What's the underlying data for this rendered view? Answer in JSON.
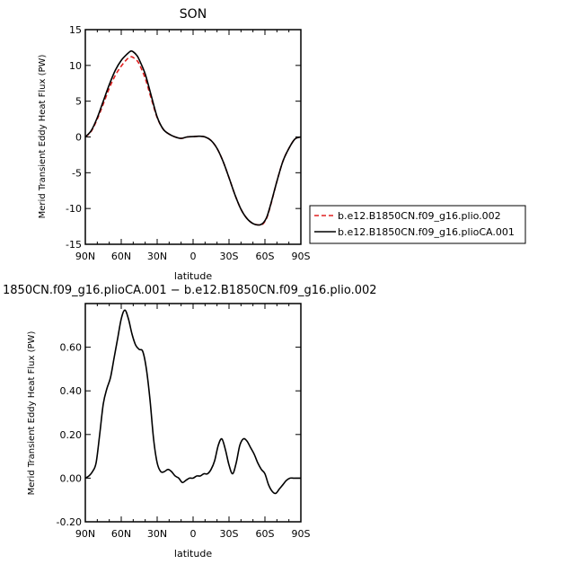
{
  "chart_data": [
    {
      "type": "line",
      "title": "SON",
      "xlabel": "latitude",
      "ylabel": "Merid Transient Eddy Heat Flux (PW)",
      "x_range": [
        90,
        -90
      ],
      "ylim": [
        -15,
        15
      ],
      "x_ticks": [
        {
          "value": 90,
          "label": "90N"
        },
        {
          "value": 60,
          "label": "60N"
        },
        {
          "value": 30,
          "label": "30N"
        },
        {
          "value": 0,
          "label": "0"
        },
        {
          "value": -30,
          "label": "30S"
        },
        {
          "value": -60,
          "label": "60S"
        },
        {
          "value": -90,
          "label": "90S"
        }
      ],
      "y_ticks": [
        {
          "value": 15,
          "label": "15"
        },
        {
          "value": 10,
          "label": "10"
        },
        {
          "value": 5,
          "label": "5"
        },
        {
          "value": 0,
          "label": "0"
        },
        {
          "value": -5,
          "label": "-5"
        },
        {
          "value": -10,
          "label": "-10"
        },
        {
          "value": -15,
          "label": "-15"
        }
      ],
      "grid": false,
      "legend_position": "right",
      "series": [
        {
          "name": "b.e12.B1850CN.f09_g16.plio.002",
          "color": "#e02020",
          "dash": "dashed",
          "x": [
            90,
            85,
            80,
            75,
            70,
            65,
            60,
            55,
            52,
            50,
            47,
            45,
            40,
            35,
            30,
            25,
            20,
            15,
            10,
            5,
            0,
            -5,
            -10,
            -15,
            -20,
            -25,
            -30,
            -35,
            -40,
            -45,
            -50,
            -55,
            -58,
            -60,
            -62,
            -65,
            -70,
            -75,
            -80,
            -85,
            -90
          ],
          "y": [
            0.0,
            0.8,
            2.5,
            4.6,
            6.8,
            8.6,
            9.9,
            10.9,
            11.2,
            11.1,
            10.7,
            10.2,
            8.2,
            5.4,
            2.7,
            1.1,
            0.4,
            0.0,
            -0.2,
            0.0,
            0.05,
            0.1,
            0.0,
            -0.5,
            -1.6,
            -3.4,
            -5.7,
            -8.1,
            -10.1,
            -11.4,
            -12.1,
            -12.3,
            -12.2,
            -11.8,
            -11.1,
            -9.4,
            -6.2,
            -3.4,
            -1.6,
            -0.3,
            0.0
          ]
        },
        {
          "name": "b.e12.B1850CN.f09_g16.plioCA.001",
          "color": "#000000",
          "dash": "solid",
          "x": [
            90,
            85,
            80,
            75,
            70,
            65,
            60,
            55,
            52,
            50,
            47,
            45,
            40,
            35,
            30,
            25,
            20,
            15,
            10,
            5,
            0,
            -5,
            -10,
            -15,
            -20,
            -25,
            -30,
            -35,
            -40,
            -45,
            -50,
            -55,
            -58,
            -60,
            -62,
            -65,
            -70,
            -75,
            -80,
            -85,
            -90
          ],
          "y": [
            0.0,
            0.9,
            2.7,
            5.0,
            7.3,
            9.3,
            10.7,
            11.6,
            12.0,
            11.9,
            11.4,
            10.8,
            8.8,
            5.8,
            2.8,
            1.1,
            0.4,
            0.0,
            -0.2,
            0.0,
            0.05,
            0.1,
            0.0,
            -0.5,
            -1.6,
            -3.4,
            -5.7,
            -8.1,
            -10.1,
            -11.4,
            -12.1,
            -12.3,
            -12.1,
            -11.7,
            -11.0,
            -9.3,
            -6.2,
            -3.4,
            -1.6,
            -0.3,
            0.0
          ]
        }
      ]
    },
    {
      "type": "line",
      "title": "1850CN.f09_g16.plioCA.001 − b.e12.B1850CN.f09_g16.plio.002",
      "xlabel": "latitude",
      "ylabel": "Merid Transient Eddy Heat Flux (PW)",
      "x_range": [
        90,
        -90
      ],
      "ylim": [
        -0.2,
        0.8
      ],
      "x_ticks": [
        {
          "value": 90,
          "label": "90N"
        },
        {
          "value": 60,
          "label": "60N"
        },
        {
          "value": 30,
          "label": "30N"
        },
        {
          "value": 0,
          "label": "0"
        },
        {
          "value": -30,
          "label": "30S"
        },
        {
          "value": -60,
          "label": "60S"
        },
        {
          "value": -90,
          "label": "90S"
        }
      ],
      "y_ticks": [
        {
          "value": 0.6,
          "label": "0.60"
        },
        {
          "value": 0.4,
          "label": "0.40"
        },
        {
          "value": 0.2,
          "label": "0.20"
        },
        {
          "value": 0.0,
          "label": "0.00"
        },
        {
          "value": -0.2,
          "label": "-0.20"
        }
      ],
      "grid": false,
      "series": [
        {
          "color": "#000000",
          "dash": "solid",
          "x": [
            90,
            87,
            84,
            81,
            78,
            75,
            72,
            69,
            66,
            63,
            60,
            57,
            54,
            51,
            48,
            45,
            42,
            39,
            36,
            33,
            30,
            27,
            24,
            21,
            18,
            15,
            12,
            9,
            6,
            3,
            0,
            -3,
            -6,
            -9,
            -12,
            -15,
            -18,
            -21,
            -24,
            -27,
            -30,
            -33,
            -36,
            -39,
            -42,
            -45,
            -48,
            -51,
            -54,
            -57,
            -60,
            -63,
            -66,
            -69,
            -72,
            -75,
            -78,
            -81,
            -84,
            -87,
            -90
          ],
          "y": [
            0.0,
            0.01,
            0.03,
            0.07,
            0.2,
            0.34,
            0.41,
            0.46,
            0.55,
            0.64,
            0.73,
            0.77,
            0.73,
            0.66,
            0.61,
            0.59,
            0.58,
            0.5,
            0.36,
            0.18,
            0.07,
            0.03,
            0.03,
            0.04,
            0.03,
            0.01,
            0.0,
            -0.02,
            -0.01,
            0.0,
            0.0,
            0.01,
            0.01,
            0.02,
            0.02,
            0.04,
            0.08,
            0.15,
            0.18,
            0.13,
            0.06,
            0.02,
            0.07,
            0.15,
            0.18,
            0.17,
            0.14,
            0.11,
            0.07,
            0.04,
            0.02,
            -0.03,
            -0.06,
            -0.07,
            -0.05,
            -0.03,
            -0.01,
            0.0,
            0.0,
            0.0,
            0.0
          ]
        }
      ]
    }
  ]
}
